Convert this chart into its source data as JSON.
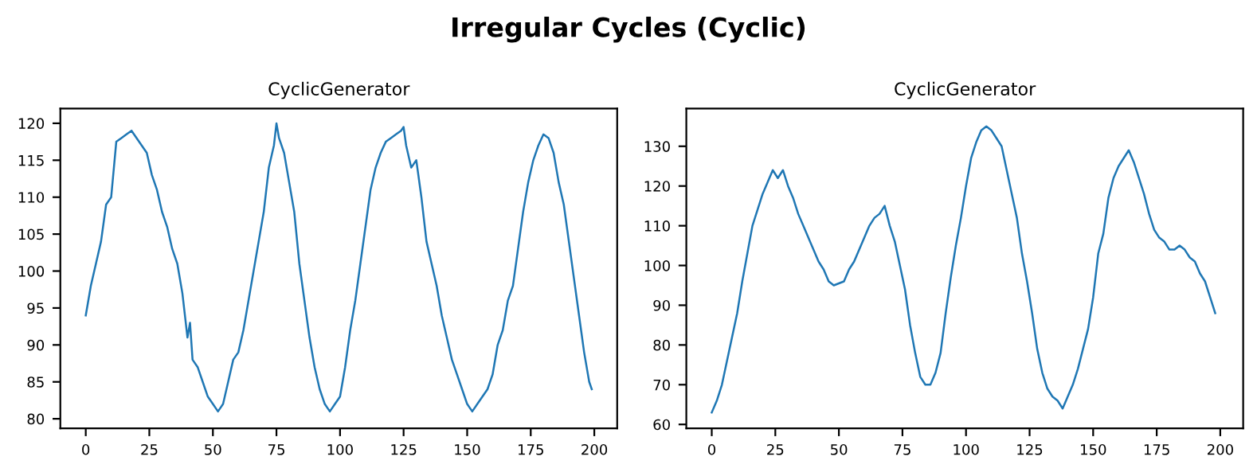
{
  "chart_data": [
    {
      "type": "line",
      "title": "CyclicGenerator",
      "annotations": [
        "Irregular Cycles (Cyclic)"
      ],
      "xlim": [
        -10,
        209
      ],
      "ylim": [
        78.7,
        122
      ],
      "xticks": [
        0,
        25,
        50,
        75,
        100,
        125,
        150,
        175,
        200
      ],
      "yticks": [
        80,
        85,
        90,
        95,
        100,
        105,
        110,
        115,
        120
      ],
      "grid": false,
      "series": [
        {
          "color": "#1f77b4",
          "x": [
            0,
            2,
            4,
            6,
            8,
            10,
            12,
            14,
            16,
            18,
            20,
            22,
            24,
            26,
            28,
            30,
            32,
            34,
            36,
            38,
            40,
            41,
            42,
            44,
            46,
            48,
            50,
            52,
            54,
            56,
            58,
            60,
            62,
            64,
            66,
            68,
            70,
            72,
            74,
            75,
            76,
            78,
            80,
            82,
            84,
            86,
            88,
            90,
            92,
            94,
            96,
            98,
            100,
            102,
            104,
            106,
            108,
            110,
            112,
            114,
            116,
            118,
            120,
            122,
            124,
            125,
            126,
            128,
            130,
            132,
            134,
            136,
            138,
            140,
            142,
            144,
            146,
            148,
            150,
            152,
            154,
            156,
            158,
            160,
            162,
            164,
            166,
            168,
            170,
            172,
            174,
            176,
            178,
            180,
            182,
            184,
            186,
            188,
            190,
            192,
            194,
            196,
            198,
            199
          ],
          "values": [
            94,
            98,
            101,
            104,
            109,
            110,
            117.5,
            118,
            118.5,
            119,
            118,
            117,
            116,
            113,
            111,
            108,
            106,
            103,
            101,
            97,
            91,
            93,
            88,
            87,
            85,
            83,
            82,
            81,
            82,
            85,
            88,
            89,
            92,
            96,
            100,
            104,
            108,
            114,
            117,
            120,
            118,
            116,
            112,
            108,
            101,
            96,
            91,
            87,
            84,
            82,
            81,
            82,
            83,
            87,
            92,
            96,
            101,
            106,
            111,
            114,
            116,
            117.5,
            118,
            118.5,
            119,
            119.5,
            117,
            114,
            115,
            110,
            104,
            101,
            98,
            94,
            91,
            88,
            86,
            84,
            82,
            81,
            82,
            83,
            84,
            86,
            90,
            92,
            96,
            98,
            103,
            108,
            112,
            115,
            117,
            118.5,
            118,
            116,
            112,
            109,
            104,
            99,
            94,
            89,
            85,
            84
          ]
        }
      ]
    },
    {
      "type": "line",
      "title": "CyclicGenerator",
      "xlim": [
        -10,
        209
      ],
      "ylim": [
        59,
        139.5
      ],
      "xticks": [
        0,
        25,
        50,
        75,
        100,
        125,
        150,
        175,
        200
      ],
      "yticks": [
        60,
        70,
        80,
        90,
        100,
        110,
        120,
        130
      ],
      "grid": false,
      "series": [
        {
          "color": "#1f77b4",
          "x": [
            0,
            2,
            4,
            6,
            8,
            10,
            12,
            14,
            16,
            18,
            20,
            22,
            24,
            26,
            28,
            30,
            32,
            34,
            36,
            38,
            40,
            42,
            44,
            46,
            48,
            50,
            52,
            54,
            56,
            58,
            60,
            62,
            64,
            66,
            68,
            70,
            72,
            74,
            76,
            78,
            80,
            82,
            84,
            86,
            88,
            90,
            92,
            94,
            96,
            98,
            100,
            102,
            104,
            106,
            108,
            110,
            112,
            114,
            116,
            118,
            120,
            122,
            124,
            126,
            128,
            130,
            132,
            134,
            136,
            138,
            140,
            142,
            144,
            146,
            148,
            150,
            152,
            154,
            156,
            158,
            160,
            162,
            164,
            166,
            168,
            170,
            172,
            174,
            176,
            178,
            180,
            182,
            184,
            186,
            188,
            190,
            192,
            194,
            196,
            198
          ],
          "values": [
            63,
            66,
            70,
            76,
            82,
            88,
            96,
            103,
            110,
            114,
            118,
            121,
            124,
            122,
            124,
            120,
            117,
            113,
            110,
            107,
            104,
            101,
            99,
            96,
            95,
            95.5,
            96,
            99,
            101,
            104,
            107,
            110,
            112,
            113,
            115,
            110,
            106,
            100,
            94,
            85,
            78,
            72,
            70,
            70,
            73,
            78,
            88,
            97,
            105,
            112,
            120,
            127,
            131,
            134,
            135,
            134,
            132,
            130,
            124,
            118,
            112,
            103,
            96,
            88,
            79,
            73,
            69,
            67,
            66,
            64,
            67,
            70,
            74,
            79,
            84,
            92,
            103,
            108,
            117,
            122,
            125,
            127,
            129,
            126,
            122,
            118,
            113,
            109,
            107,
            106,
            104,
            104,
            105,
            104,
            102,
            101,
            98,
            96,
            92,
            88
          ]
        }
      ]
    }
  ]
}
